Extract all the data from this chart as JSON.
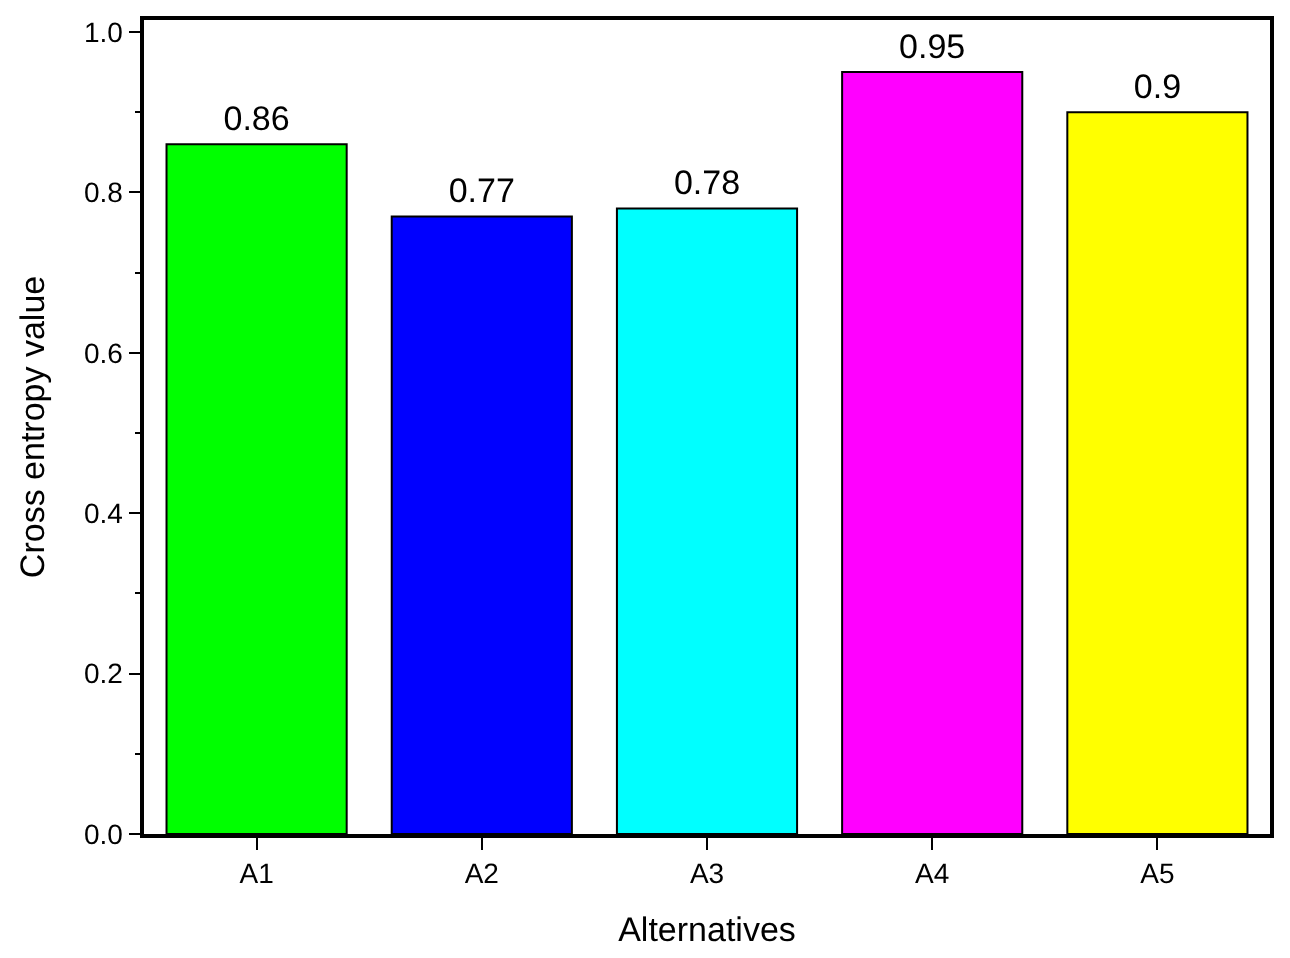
{
  "chart_data": {
    "type": "bar",
    "xlabel": "Alternatives",
    "ylabel": "Cross entropy value",
    "categories": [
      "A1",
      "A2",
      "A3",
      "A4",
      "A5"
    ],
    "values": [
      0.86,
      0.77,
      0.78,
      0.95,
      0.9
    ],
    "colors": [
      "#00ff00",
      "#0000ff",
      "#00ffff",
      "#ff00ff",
      "#ffff00"
    ],
    "ylim": [
      0,
      1.015
    ],
    "yticks": [
      {
        "value": 0,
        "label": "0.0"
      },
      {
        "value": 0.2,
        "label": "0.2"
      },
      {
        "value": 0.4,
        "label": "0.4"
      },
      {
        "value": 0.6,
        "label": "0.6"
      },
      {
        "value": 0.8,
        "label": "0.8"
      },
      {
        "value": 1.0,
        "label": "1.0"
      }
    ],
    "data_labels": true
  }
}
